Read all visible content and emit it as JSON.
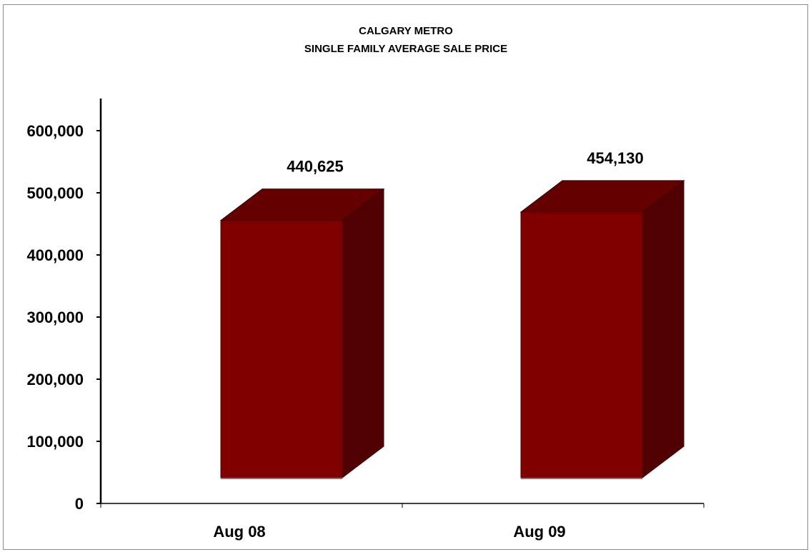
{
  "chart_data": {
    "type": "bar",
    "title": [
      "CALGARY METRO",
      "SINGLE FAMILY AVERAGE SALE PRICE"
    ],
    "categories": [
      "Aug 08",
      "Aug 09"
    ],
    "values": [
      440625,
      454130
    ],
    "value_labels": [
      "440,625",
      "454,130"
    ],
    "xlabel": "",
    "ylabel": "",
    "ylim": [
      0,
      600000
    ],
    "yticks": [
      0,
      100000,
      200000,
      300000,
      400000,
      500000,
      600000
    ],
    "ytick_labels": [
      "0",
      "100,000",
      "200,000",
      "300,000",
      "400,000",
      "500,000",
      "600,000"
    ],
    "grid": false,
    "legend": "none",
    "three_d": true,
    "colors": {
      "bar_front": "#800000",
      "bar_top": "#640000",
      "bar_side": "#500000",
      "axis": "#000000"
    }
  }
}
